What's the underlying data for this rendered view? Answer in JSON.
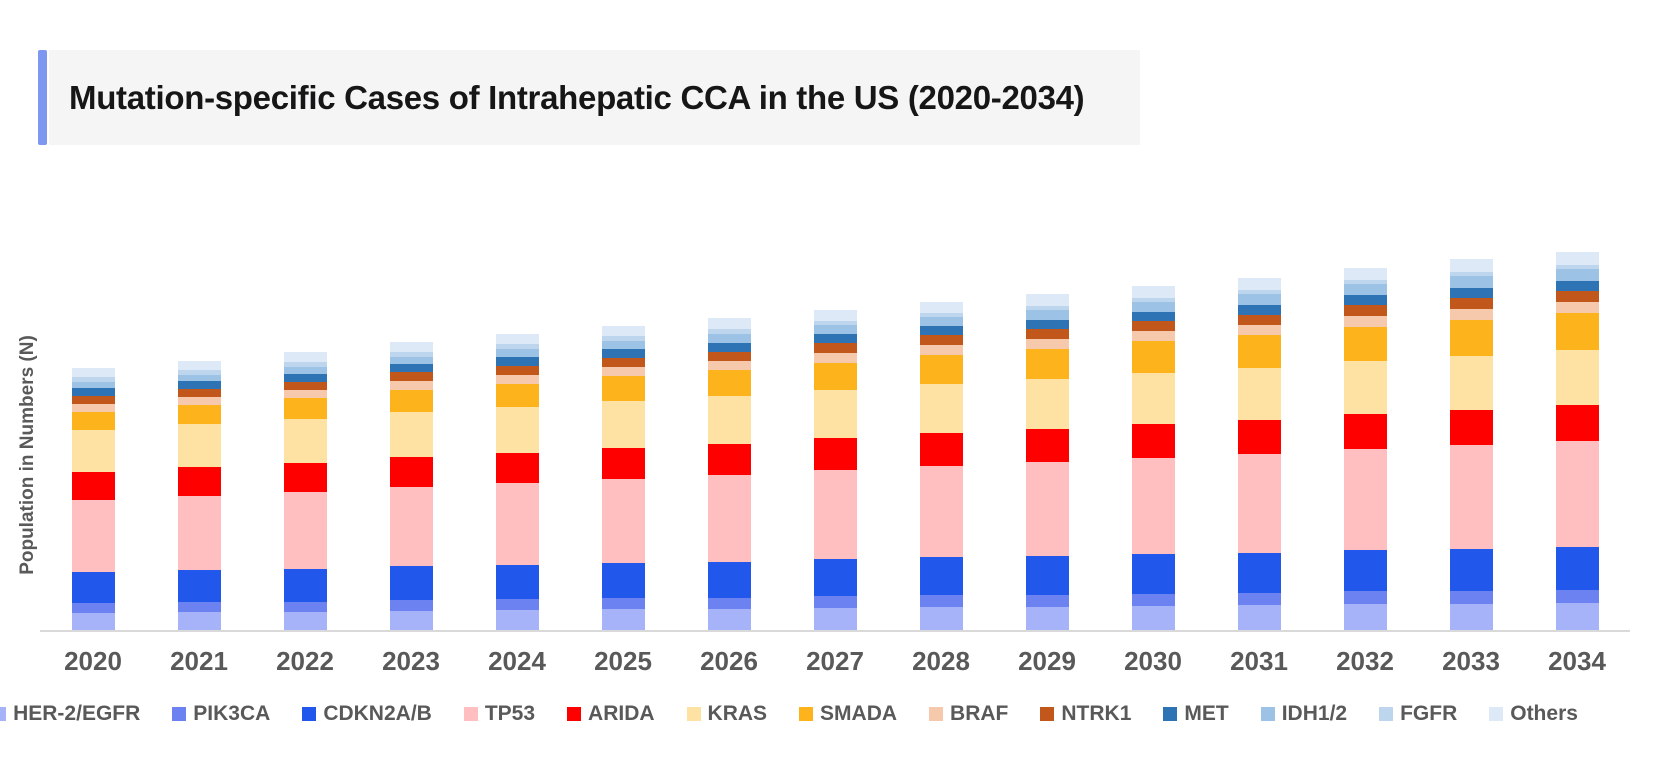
{
  "title": {
    "text": "Mutation-specific Cases of Intrahepatic CCA in the US (2020-2034)"
  },
  "y_axis": {
    "label": "Population in Numbers (N)"
  },
  "accent_color": "#7e97f0",
  "title_panel_color": "#f5f5f6",
  "axis_line_color": "#d9d9d9",
  "text_color": "#595959",
  "chart_data": {
    "type": "bar",
    "stacked": true,
    "title": "Mutation-specific Cases of Intrahepatic CCA in the US (2020-2034)",
    "xlabel": "",
    "ylabel": "Population in Numbers (N)",
    "grid": false,
    "y_axis_ticks": "none (no numeric scale shown)",
    "values_unit": "relative height units estimated from pixels; no numeric axis visible",
    "legend_position": "bottom",
    "categories": [
      "2020",
      "2021",
      "2022",
      "2023",
      "2024",
      "2025",
      "2026",
      "2027",
      "2028",
      "2029",
      "2030",
      "2031",
      "2032",
      "2033",
      "2034"
    ],
    "series": [
      {
        "name": "HER-2/EGFR",
        "color": "#a6b3f8",
        "values": [
          17,
          18,
          18,
          19,
          20,
          21,
          21,
          22,
          23,
          23,
          24,
          25,
          26,
          26,
          27
        ]
      },
      {
        "name": "PIK3CA",
        "color": "#6c82f0",
        "values": [
          10,
          10,
          10,
          11,
          11,
          11,
          11,
          12,
          12,
          12,
          12,
          12,
          13,
          13,
          13
        ]
      },
      {
        "name": "CDKN2A/B",
        "color": "#2257ec",
        "values": [
          31,
          32,
          33,
          34,
          34,
          35,
          36,
          37,
          38,
          39,
          40,
          40,
          41,
          42,
          43
        ]
      },
      {
        "name": "TP53",
        "color": "#ffbfc1",
        "values": [
          72,
          74,
          77,
          79,
          82,
          84,
          87,
          89,
          91,
          94,
          96,
          99,
          101,
          104,
          106
        ]
      },
      {
        "name": "ARIDA",
        "color": "#fe0000",
        "values": [
          28,
          29,
          29,
          30,
          30,
          31,
          31,
          32,
          33,
          33,
          34,
          34,
          35,
          35,
          36
        ]
      },
      {
        "name": "KRAS",
        "color": "#fde2a4",
        "values": [
          42,
          43,
          44,
          45,
          46,
          47,
          48,
          48,
          49,
          50,
          51,
          52,
          53,
          54,
          55
        ]
      },
      {
        "name": "SMADA",
        "color": "#fdb31b",
        "values": [
          18,
          19,
          21,
          22,
          23,
          25,
          26,
          27,
          29,
          30,
          32,
          33,
          34,
          36,
          37
        ]
      },
      {
        "name": "BRAF",
        "color": "#f6c9ac",
        "values": [
          8,
          8,
          8,
          9,
          9,
          9,
          9,
          10,
          10,
          10,
          10,
          10,
          11,
          11,
          11
        ]
      },
      {
        "name": "NTRK1",
        "color": "#c2571b",
        "values": [
          8,
          8,
          8,
          9,
          9,
          9,
          9,
          10,
          10,
          10,
          10,
          10,
          11,
          11,
          11
        ]
      },
      {
        "name": "MET",
        "color": "#2e74b5",
        "values": [
          8,
          8,
          8,
          8,
          9,
          9,
          9,
          9,
          9,
          9,
          9,
          10,
          10,
          10,
          10
        ]
      },
      {
        "name": "IDH1/2",
        "color": "#9cc2e5",
        "values": [
          6,
          6,
          7,
          7,
          8,
          8,
          9,
          9,
          9,
          10,
          10,
          11,
          11,
          12,
          12
        ]
      },
      {
        "name": "FGFR",
        "color": "#bdd6ee",
        "values": [
          5,
          5,
          5,
          5,
          5,
          5,
          5,
          4,
          4,
          4,
          4,
          4,
          4,
          4,
          4
        ]
      },
      {
        "name": "Others",
        "color": "#dde9f6",
        "values": [
          9,
          9,
          10,
          10,
          10,
          10,
          11,
          11,
          11,
          12,
          12,
          12,
          12,
          13,
          13
        ]
      }
    ]
  }
}
